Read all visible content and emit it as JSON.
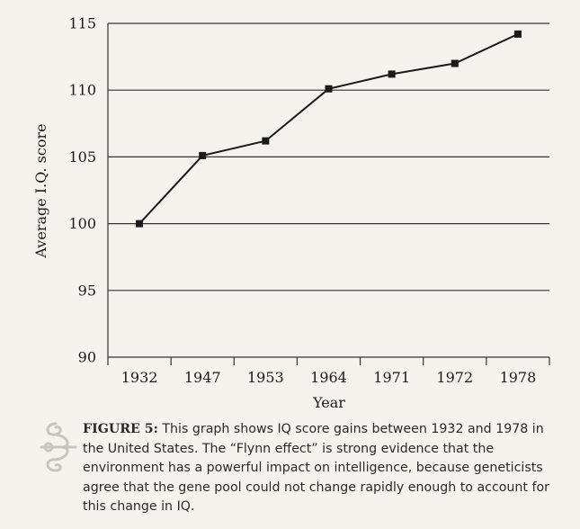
{
  "chart_data": {
    "type": "line",
    "categories": [
      "1932",
      "1947",
      "1953",
      "1964",
      "1971",
      "1972",
      "1978"
    ],
    "values": [
      100,
      105.1,
      106.2,
      110.1,
      111.2,
      112.0,
      114.2
    ],
    "xlabel": "Year",
    "ylabel": "Average I.Q. score",
    "ylim": [
      90,
      115
    ],
    "yticks": [
      "90",
      "95",
      "100",
      "105",
      "110",
      "115"
    ],
    "grid": "horizontal",
    "marker": "square",
    "colors": {
      "line": "#1a1a1a",
      "grid": "#333333",
      "background": "#f6f3ee"
    }
  },
  "caption": {
    "label": "FIGURE 5:",
    "text": "This graph shows IQ score gains between 1932 and 1978 in the United States. The “Flynn effect” is strong evidence that the environment has a powerful impact on intelligence, because geneticists agree that the gene pool could not change rapidly enough to account for this change in IQ."
  },
  "decor": {
    "icon": "ornament-icon",
    "color": "#c9c4bd"
  }
}
